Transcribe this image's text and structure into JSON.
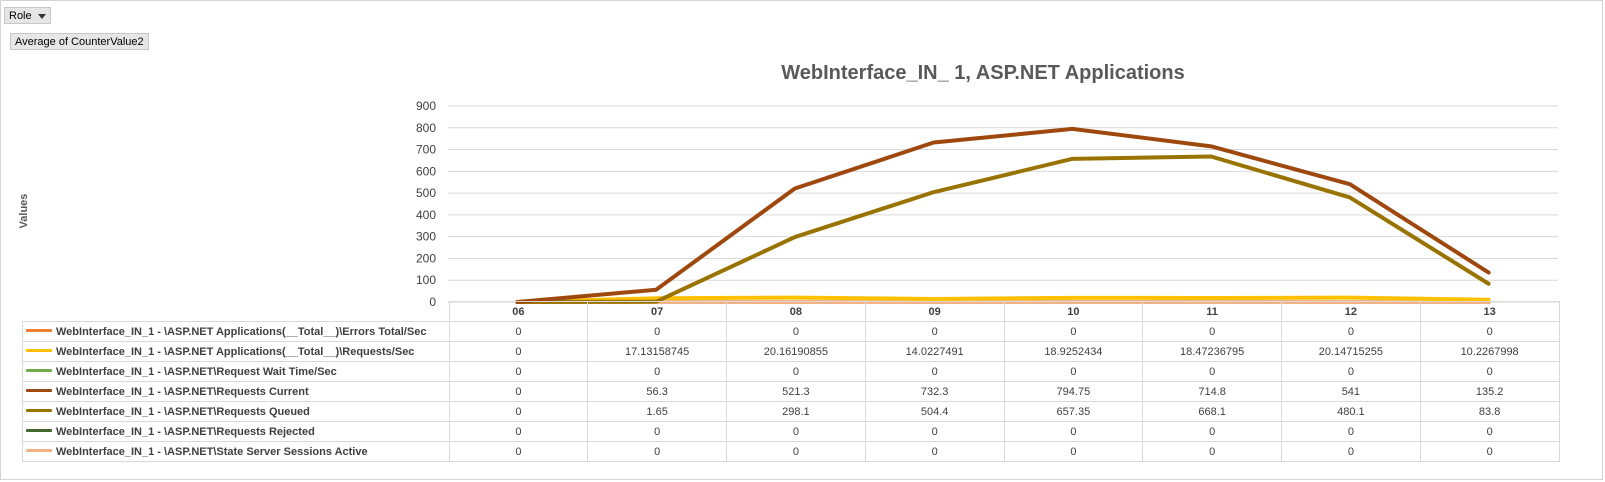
{
  "controls": {
    "role_label": "Role",
    "value_field_label": "Average of CounterValue2"
  },
  "chart_data": {
    "type": "line",
    "title": "WebInterface_IN_ 1, ASP.NET Applications",
    "ylabel": "Values",
    "xlabel": "",
    "ylim": [
      0,
      900
    ],
    "yticks": [
      0,
      100,
      200,
      300,
      400,
      500,
      600,
      700,
      800,
      900
    ],
    "grid": true,
    "legend": "data-table",
    "categories": [
      "06",
      "07",
      "08",
      "09",
      "10",
      "11",
      "12",
      "13"
    ],
    "series": [
      {
        "name": "WebInterface_IN_1 - \\ASP.NET Applications(__Total__)\\Errors Total/Sec",
        "color": "#ED7D31",
        "values": [
          0,
          0,
          0,
          0,
          0,
          0,
          0,
          0
        ],
        "labels": [
          "0",
          "0",
          "0",
          "0",
          "0",
          "0",
          "0",
          "0"
        ]
      },
      {
        "name": "WebInterface_IN_1 - \\ASP.NET Applications(__Total__)\\Requests/Sec",
        "color": "#FFC000",
        "values": [
          0,
          17.13158745,
          20.16190855,
          14.0227491,
          18.9252434,
          18.47236795,
          20.14715255,
          10.2267998
        ],
        "labels": [
          "0",
          "17.13158745",
          "20.16190855",
          "14.0227491",
          "18.9252434",
          "18.47236795",
          "20.14715255",
          "10.2267998"
        ]
      },
      {
        "name": "WebInterface_IN_1 - \\ASP.NET\\Request Wait Time/Sec",
        "color": "#70AD47",
        "values": [
          0,
          0,
          0,
          0,
          0,
          0,
          0,
          0
        ],
        "labels": [
          "0",
          "0",
          "0",
          "0",
          "0",
          "0",
          "0",
          "0"
        ]
      },
      {
        "name": "WebInterface_IN_1 - \\ASP.NET\\Requests Current",
        "color": "#9E480E",
        "values": [
          0,
          56.3,
          521.3,
          732.3,
          794.75,
          714.8,
          541,
          135.2
        ],
        "labels": [
          "0",
          "56.3",
          "521.3",
          "732.3",
          "794.75",
          "714.8",
          "541",
          "135.2"
        ]
      },
      {
        "name": "WebInterface_IN_1 - \\ASP.NET\\Requests Queued",
        "color": "#997300",
        "values": [
          0,
          1.65,
          298.1,
          504.4,
          657.35,
          668.1,
          480.1,
          83.8
        ],
        "labels": [
          "0",
          "1.65",
          "298.1",
          "504.4",
          "657.35",
          "668.1",
          "480.1",
          "83.8"
        ]
      },
      {
        "name": "WebInterface_IN_1 - \\ASP.NET\\Requests Rejected",
        "color": "#43682B",
        "values": [
          0,
          0,
          0,
          0,
          0,
          0,
          0,
          0
        ],
        "labels": [
          "0",
          "0",
          "0",
          "0",
          "0",
          "0",
          "0",
          "0"
        ]
      },
      {
        "name": "WebInterface_IN_1 - \\ASP.NET\\State Server Sessions Active",
        "color": "#F4B183",
        "values": [
          0,
          0,
          0,
          0,
          0,
          0,
          0,
          0
        ],
        "labels": [
          "0",
          "0",
          "0",
          "0",
          "0",
          "0",
          "0",
          "0"
        ]
      }
    ]
  }
}
